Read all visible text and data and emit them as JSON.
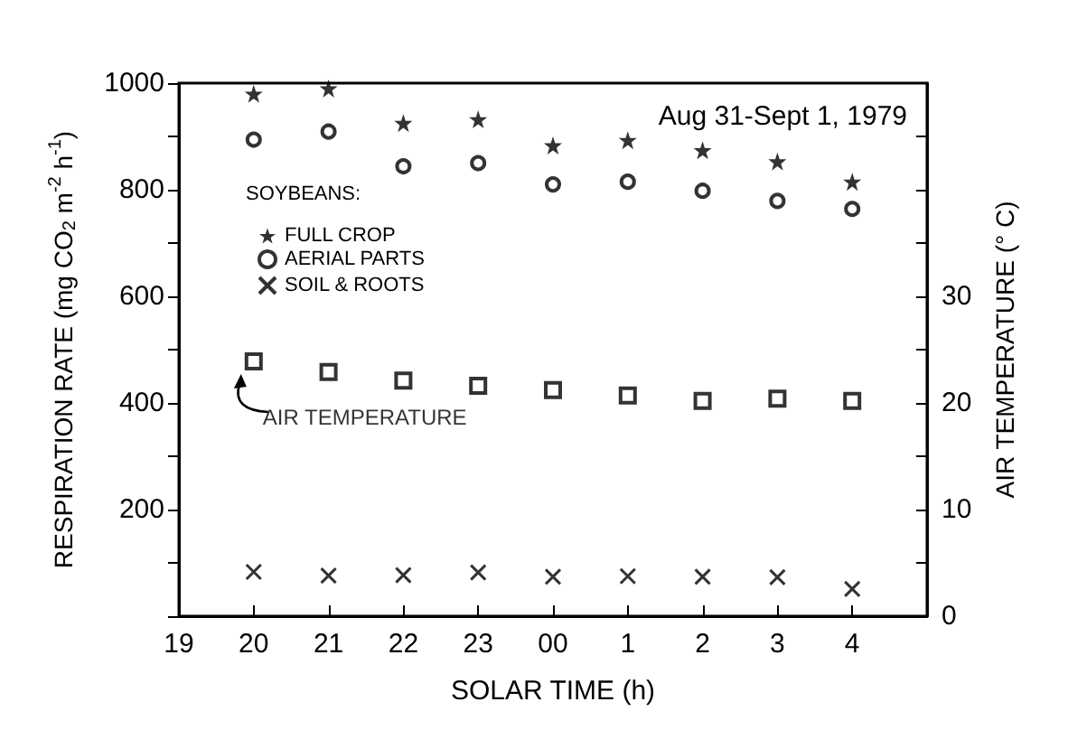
{
  "chart_data": {
    "type": "scatter",
    "title": "Aug 31-Sept 1, 1979",
    "xlabel": "SOLAR TIME (h)",
    "ylabel": "RESPIRATION RATE (mg CO$_{2}$ m$^{-2}$ h$^{-1}$)",
    "y2label": "AIR TEMPERATURE (° C)",
    "legend_title": "SOYBEANS:",
    "legend": "top left",
    "grid": false,
    "categories": [
      "19",
      "20",
      "21",
      "22",
      "23",
      "00",
      "1",
      "2",
      "3",
      "4",
      null
    ],
    "ylim": [
      0,
      1000
    ],
    "yticks": [
      {
        "value": 0,
        "label": null
      },
      {
        "value": 100,
        "label": null
      },
      200,
      {
        "value": 300,
        "label": null
      },
      400,
      {
        "value": 500,
        "label": null
      },
      600,
      {
        "value": 700,
        "label": null
      },
      800,
      {
        "value": 900,
        "label": null
      },
      1000
    ],
    "y2lim": [
      0,
      50
    ],
    "y2ticks": [
      0,
      {
        "value": 5,
        "label": null
      },
      10,
      {
        "value": 15,
        "label": null
      },
      20,
      {
        "value": 25,
        "label": null
      },
      30,
      {
        "value": 35,
        "label": null
      },
      {
        "value": 40,
        "label": null
      },
      {
        "value": 45,
        "label": null
      }
    ],
    "series": [
      {
        "name": "FULL CROP",
        "color": "#000000",
        "marker": "star",
        "values": [
          null,
          980,
          990,
          925,
          932,
          883,
          893,
          874,
          853,
          815,
          null
        ]
      },
      {
        "name": "AERIAL PARTS",
        "color": "#000000",
        "marker": "circle",
        "values": [
          null,
          894,
          909,
          844,
          850,
          810,
          815,
          798,
          779,
          764,
          null
        ]
      },
      {
        "name": "SOIL & ROOTS",
        "color": "#000000",
        "marker": "cross",
        "values": [
          null,
          83,
          76,
          77,
          82,
          74,
          75,
          74,
          73,
          51,
          null
        ]
      },
      {
        "name": "AIR TEMPERATURE",
        "color": "#000000",
        "marker": "square",
        "axis": "y2",
        "values": [
          null,
          23.9,
          22.9,
          22.1,
          21.6,
          21.2,
          20.7,
          20.2,
          20.4,
          20.2,
          null
        ]
      }
    ]
  }
}
